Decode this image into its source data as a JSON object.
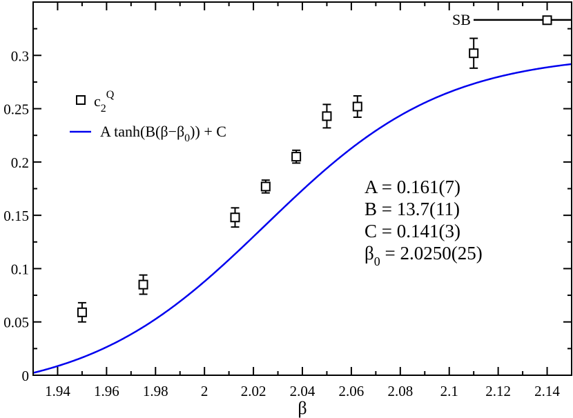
{
  "chart_data": {
    "type": "scatter",
    "xlabel": "β",
    "ylabel": "",
    "xlim": [
      1.93,
      2.15
    ],
    "ylim": [
      0,
      0.35
    ],
    "x_ticks": [
      "1.94",
      "1.96",
      "1.98",
      "2",
      "2.02",
      "2.04",
      "2.06",
      "2.08",
      "2.1",
      "2.12",
      "2.14"
    ],
    "y_ticks": [
      "0",
      "0.05",
      "0.1",
      "0.15",
      "0.2",
      "0.25",
      "0.3"
    ],
    "series": [
      {
        "name": "c2Q",
        "x": [
          1.95,
          1.975,
          2.0125,
          2.025,
          2.0375,
          2.05,
          2.0625,
          2.11,
          2.14
        ],
        "y": [
          0.059,
          0.085,
          0.148,
          0.177,
          0.205,
          0.243,
          0.252,
          0.302,
          0.333
        ],
        "err": [
          0.009,
          0.009,
          0.009,
          0.006,
          0.006,
          0.011,
          0.01,
          0.014,
          0.002
        ]
      },
      {
        "name": "A tanh(B(β−β0)) + C",
        "fit": {
          "A": 0.161,
          "B": 13.7,
          "C": 0.141,
          "beta0": 2.025
        }
      }
    ],
    "annotation_sb": "SB",
    "sb_value": 0.3333,
    "fit_params": [
      "A = 0.161(7)",
      "B = 13.7(11)",
      "C = 0.141(3)",
      "β0 = 2.0250(25)"
    ],
    "colors": {
      "data": "#000000",
      "fit": "#0000ee"
    }
  }
}
